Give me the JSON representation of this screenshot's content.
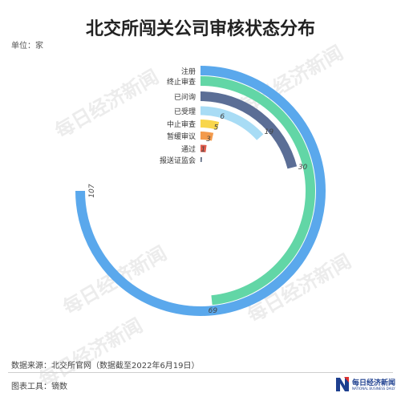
{
  "title": "北交所闯关公司审核状态分布",
  "unit_label": "单位：家",
  "footer": {
    "source": "数据来源：北交所官网（数据截至2022年6月19日）",
    "tool": "图表工具：镝数"
  },
  "watermark": "每日经济新闻",
  "logo": {
    "name": "每日经济新闻",
    "sub": "NATIONAL BUSINESS DAILY"
  },
  "colors": [
    "#5aa8ec",
    "#62d6a6",
    "#5b6e96",
    "#a8dcf5",
    "#f8d64c",
    "#f39a4c",
    "#e05b4b",
    "#5f6b82"
  ],
  "chart_data": {
    "type": "radial-bar",
    "max": 107,
    "categories": [
      "注册",
      "终止审查",
      "已问询",
      "已受理",
      "中止审查",
      "暂缓审议",
      "通过",
      "报送证监会"
    ],
    "values": [
      107,
      69,
      30,
      19,
      6,
      5,
      3,
      1
    ],
    "value_labels": [
      "107",
      "69",
      "30",
      "19",
      "6",
      "5",
      "3",
      "1"
    ]
  }
}
